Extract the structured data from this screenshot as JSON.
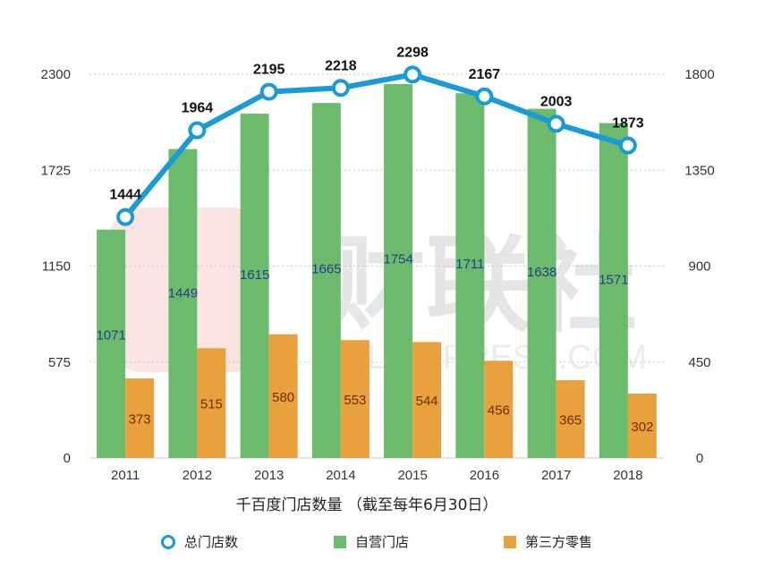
{
  "chart_data": {
    "type": "bar",
    "categories": [
      "2011",
      "2012",
      "2013",
      "2014",
      "2015",
      "2016",
      "2017",
      "2018"
    ],
    "xlabel": "千百度门店数量 （截至每年6月30日）",
    "left_axis": {
      "ylim": [
        0,
        2300
      ],
      "ticks": [
        0,
        575,
        1150,
        1725,
        2300
      ],
      "tick_labels": [
        "0",
        "575",
        "1150",
        "1725",
        "2300"
      ]
    },
    "right_axis": {
      "ylim": [
        0,
        1800
      ],
      "ticks": [
        0,
        450,
        900,
        1350,
        1800
      ],
      "tick_labels": [
        "0",
        "450",
        "900",
        "1350",
        "1800"
      ]
    },
    "grid": true,
    "series": [
      {
        "name": "总门店数",
        "kind": "line",
        "axis": "left",
        "color": "#1a9ad6",
        "values": [
          1444,
          1964,
          2195,
          2218,
          2298,
          2167,
          2003,
          1873
        ],
        "labels": [
          "1444",
          "1964",
          "2195",
          "2218",
          "2298",
          "2167",
          "2003",
          "1873"
        ]
      },
      {
        "name": "自营门店",
        "kind": "bar",
        "axis": "right",
        "color": "#6cbb6c",
        "values": [
          1071,
          1449,
          1615,
          1665,
          1754,
          1711,
          1638,
          1571
        ],
        "labels": [
          "1071",
          "1449",
          "1615",
          "1665",
          "1754",
          "1711",
          "1638",
          "1571"
        ]
      },
      {
        "name": "第三方零售",
        "kind": "bar",
        "axis": "right",
        "color": "#e8a13c",
        "values": [
          373,
          515,
          580,
          553,
          544,
          456,
          365,
          302
        ],
        "labels": [
          "373",
          "515",
          "580",
          "553",
          "544",
          "456",
          "365",
          "302"
        ]
      }
    ],
    "legend": {
      "position": "bottom",
      "items": [
        {
          "name": "总门店数",
          "color": "#1a9ad6",
          "shape": "ring"
        },
        {
          "name": "自营门店",
          "color": "#6cbb6c",
          "shape": "square"
        },
        {
          "name": "第三方零售",
          "color": "#e8a13c",
          "shape": "square"
        }
      ]
    },
    "watermark": {
      "text": "财联社",
      "subtext": "CAILIANPRESS.COM"
    }
  }
}
